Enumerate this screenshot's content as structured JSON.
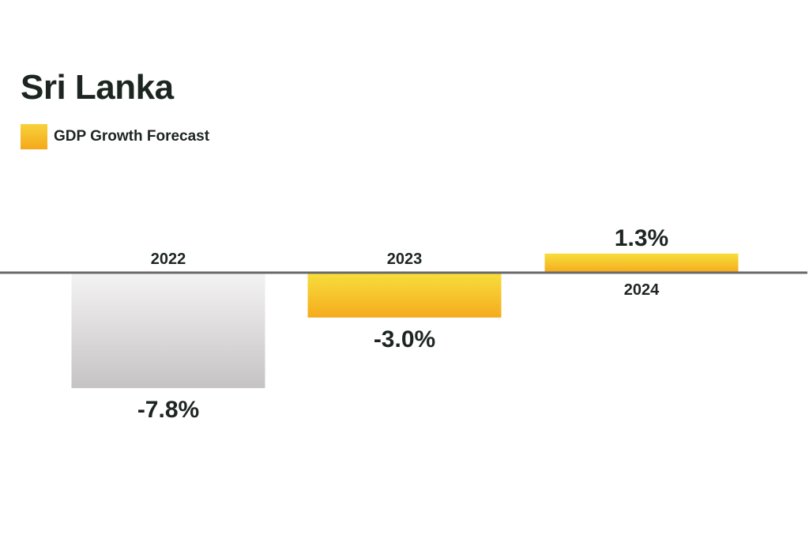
{
  "chart_data": {
    "type": "bar",
    "title": "Sri Lanka",
    "categories": [
      "2022",
      "2023",
      "2024"
    ],
    "series": [
      {
        "name": "GDP Growth Forecast",
        "values": [
          -7.8,
          -3.0,
          1.3
        ]
      }
    ],
    "value_labels": [
      "-7.8%",
      "-3.0%",
      "1.3%"
    ],
    "ylim": [
      -10,
      5
    ],
    "grid": false,
    "legend": "top-left",
    "colors": {
      "actual": "#d0cecf",
      "forecast": "#f6bd2a",
      "baseline": "#6a6a6a",
      "text": "#1d2521"
    }
  }
}
